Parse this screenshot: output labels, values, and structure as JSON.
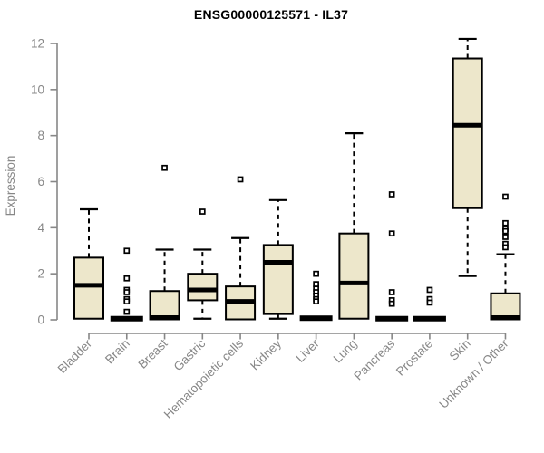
{
  "chart_data": {
    "type": "box",
    "title": "ENSG00000125571 - IL37",
    "ylabel": "Expression",
    "xlabel": "",
    "ylim": [
      0,
      12
    ],
    "y_ticks": [
      0,
      2,
      4,
      6,
      8,
      10,
      12
    ],
    "grid": false,
    "legend": "none",
    "categories": [
      "Bladder",
      "Brain",
      "Breast",
      "Gastric",
      "Hematopoietic cells",
      "Kidney",
      "Liver",
      "Lung",
      "Pancreas",
      "Prostate",
      "Skin",
      "Unknown / Other"
    ],
    "boxes": [
      {
        "category": "Bladder",
        "q1": 0.05,
        "median": 1.5,
        "q3": 2.7,
        "whisker_low": 0.05,
        "whisker_high": 4.8,
        "outliers": []
      },
      {
        "category": "Brain",
        "q1": 0.02,
        "median": 0.05,
        "q3": 0.1,
        "whisker_low": 0.02,
        "whisker_high": 0.1,
        "outliers": [
          3.0,
          1.8,
          1.3,
          1.2,
          0.9,
          0.8,
          0.35
        ]
      },
      {
        "category": "Breast",
        "q1": 0.02,
        "median": 0.1,
        "q3": 1.25,
        "whisker_low": 0.02,
        "whisker_high": 3.05,
        "outliers": [
          6.6
        ]
      },
      {
        "category": "Gastric",
        "q1": 0.85,
        "median": 1.3,
        "q3": 2.0,
        "whisker_low": 0.05,
        "whisker_high": 3.05,
        "outliers": [
          4.7
        ]
      },
      {
        "category": "Hematopoietic cells",
        "q1": 0.02,
        "median": 0.8,
        "q3": 1.45,
        "whisker_low": 0.02,
        "whisker_high": 3.55,
        "outliers": [
          6.1
        ]
      },
      {
        "category": "Kidney",
        "q1": 0.25,
        "median": 2.5,
        "q3": 3.25,
        "whisker_low": 0.05,
        "whisker_high": 5.2,
        "outliers": []
      },
      {
        "category": "Liver",
        "q1": 0.02,
        "median": 0.07,
        "q3": 0.12,
        "whisker_low": 0.02,
        "whisker_high": 0.12,
        "outliers": [
          2.0,
          1.55,
          1.35,
          1.2,
          1.05,
          0.9,
          0.8
        ]
      },
      {
        "category": "Lung",
        "q1": 0.05,
        "median": 1.6,
        "q3": 3.75,
        "whisker_low": 0.05,
        "whisker_high": 8.1,
        "outliers": []
      },
      {
        "category": "Pancreas",
        "q1": 0.02,
        "median": 0.05,
        "q3": 0.1,
        "whisker_low": 0.02,
        "whisker_high": 0.1,
        "outliers": [
          5.45,
          3.75,
          1.2,
          0.85,
          0.7
        ]
      },
      {
        "category": "Prostate",
        "q1": 0.02,
        "median": 0.05,
        "q3": 0.1,
        "whisker_low": 0.02,
        "whisker_high": 0.1,
        "outliers": [
          1.3,
          0.9,
          0.75
        ]
      },
      {
        "category": "Skin",
        "q1": 4.85,
        "median": 8.45,
        "q3": 11.35,
        "whisker_low": 1.9,
        "whisker_high": 12.2,
        "outliers": []
      },
      {
        "category": "Unknown / Other",
        "q1": 0.02,
        "median": 0.1,
        "q3": 1.15,
        "whisker_low": 0.02,
        "whisker_high": 2.85,
        "outliers": [
          5.35,
          4.2,
          3.95,
          3.85,
          3.6,
          3.3,
          3.15
        ]
      }
    ],
    "colors": {
      "box_fill": "#EDE7CB",
      "box_stroke": "#000000",
      "median": "#000000",
      "outlier_fill": "#ffffff",
      "axis": "#878787",
      "title": "#000000",
      "background": "#ffffff"
    }
  }
}
